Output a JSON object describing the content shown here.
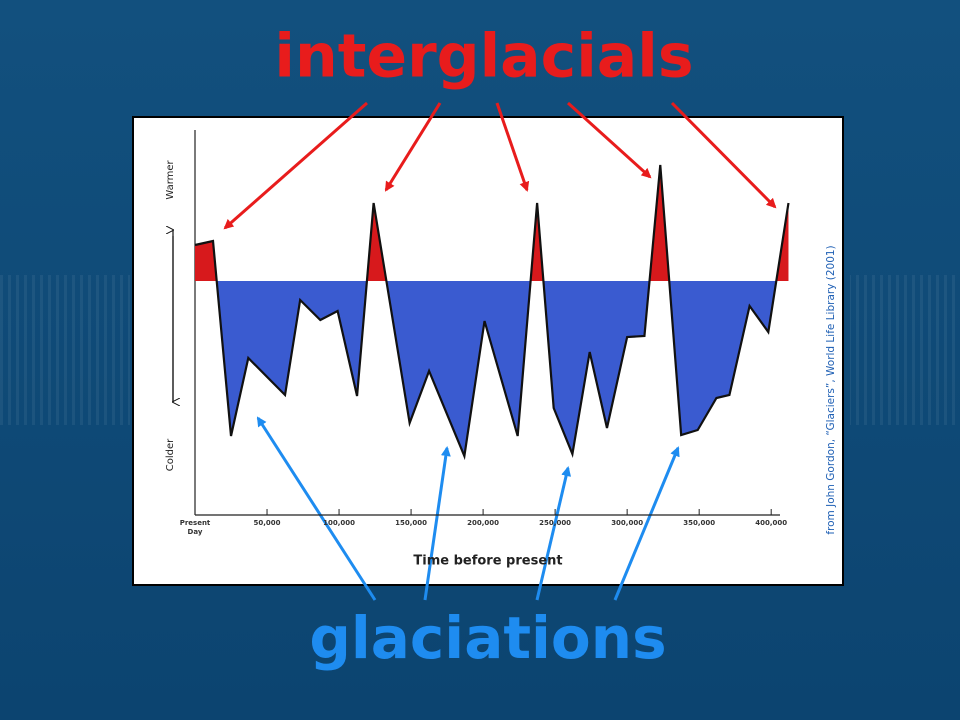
{
  "chart_data": {
    "type": "area",
    "annotations": [
      "interglacials",
      "glaciations"
    ],
    "xlabel": "Time before present",
    "y_annotations": [
      "Warmer",
      "Colder"
    ],
    "source": "from John Gordon, “Glaciers”, World Life Library (2001)",
    "xlim": [
      0,
      420000
    ],
    "ylim": [
      -11.7,
      7.55
    ],
    "xticks": [
      {
        "value": 0,
        "label": "Present Day"
      },
      {
        "value": 50000,
        "label": "50,000"
      },
      {
        "value": 100000,
        "label": "100,000"
      },
      {
        "value": 150000,
        "label": "150,000"
      },
      {
        "value": 200000,
        "label": "200,000"
      },
      {
        "value": 250000,
        "label": "250,000"
      },
      {
        "value": 300000,
        "label": "300,000"
      },
      {
        "value": 350000,
        "label": "350,000"
      },
      {
        "value": 400000,
        "label": "400,000"
      }
    ],
    "series": [
      {
        "color": "#111111",
        "fill_above": "#d7191c",
        "fill_below": "#3a5bd0",
        "x": [
          0,
          12500,
          25000,
          37000,
          62500,
          73000,
          87000,
          99000,
          112500,
          124000,
          149000,
          162500,
          187000,
          201000,
          224000,
          237500,
          249000,
          262000,
          274000,
          286000,
          300000,
          312000,
          323000,
          337500,
          349000,
          362000,
          371000,
          385000,
          398000,
          412000
        ],
        "values": [
          1.8,
          2.0,
          -7.75,
          -3.85,
          -5.7,
          -0.95,
          -1.95,
          -1.5,
          -5.75,
          3.9,
          -7.1,
          -4.5,
          -8.75,
          -2.0,
          -7.75,
          3.9,
          -6.35,
          -8.65,
          -3.55,
          -7.35,
          -2.8,
          -2.75,
          5.8,
          -7.7,
          -7.45,
          -5.85,
          -5.7,
          -1.25,
          -2.55,
          3.9
        ]
      }
    ]
  }
}
